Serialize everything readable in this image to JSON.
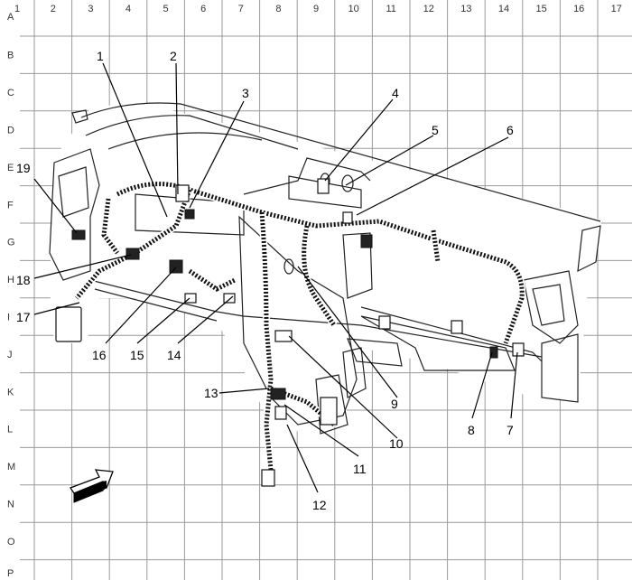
{
  "grid": {
    "columns": [
      "1",
      "2",
      "3",
      "4",
      "5",
      "6",
      "7",
      "8",
      "9",
      "10",
      "11",
      "12",
      "13",
      "14",
      "15",
      "16",
      "17"
    ],
    "rows": [
      "A",
      "B",
      "C",
      "D",
      "E",
      "F",
      "G",
      "H",
      "I",
      "J",
      "K",
      "L",
      "M",
      "N",
      "O",
      "P"
    ]
  },
  "callouts": [
    {
      "label": "1"
    },
    {
      "label": "2"
    },
    {
      "label": "3"
    },
    {
      "label": "4"
    },
    {
      "label": "5"
    },
    {
      "label": "6"
    },
    {
      "label": "7"
    },
    {
      "label": "8"
    },
    {
      "label": "9"
    },
    {
      "label": "10"
    },
    {
      "label": "11"
    },
    {
      "label": "12"
    },
    {
      "label": "13"
    },
    {
      "label": "14"
    },
    {
      "label": "15"
    },
    {
      "label": "16"
    },
    {
      "label": "17"
    },
    {
      "label": "18"
    },
    {
      "label": "19"
    }
  ],
  "orientation_arrow": {
    "icon": "front-of-vehicle-arrow-icon"
  }
}
